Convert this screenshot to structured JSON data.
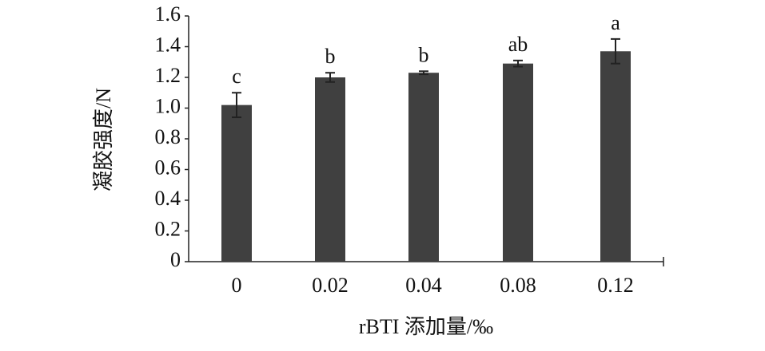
{
  "chart_data": {
    "type": "bar",
    "x_label": "rBTI 添加量/‰",
    "y_label": "凝胶强度/N",
    "categories": [
      "0",
      "0.02",
      "0.04",
      "0.08",
      "0.12"
    ],
    "values": [
      1.02,
      1.2,
      1.23,
      1.29,
      1.37
    ],
    "errors": [
      0.08,
      0.03,
      0.01,
      0.02,
      0.08
    ],
    "letters": [
      "c",
      "b",
      "b",
      "ab",
      "a"
    ],
    "color": "#404040",
    "ylim": [
      0,
      1.6
    ],
    "yticks": [
      0,
      0.2,
      0.4,
      0.6,
      0.8,
      {
        "value": 1.0,
        "label": "1.0"
      },
      1.2,
      1.4,
      1.6
    ]
  }
}
